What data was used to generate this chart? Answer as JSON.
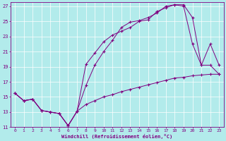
{
  "xlabel": "Windchill (Refroidissement éolien,°C)",
  "ylabel": "",
  "background_color": "#b2ebeb",
  "line_color": "#800080",
  "grid_color": "#ffffff",
  "xlim": [
    -0.5,
    23.5
  ],
  "ylim": [
    11,
    27.5
  ],
  "xticks": [
    0,
    1,
    2,
    3,
    4,
    5,
    6,
    7,
    8,
    9,
    10,
    11,
    12,
    13,
    14,
    15,
    16,
    17,
    18,
    19,
    20,
    21,
    22,
    23
  ],
  "yticks": [
    11,
    13,
    15,
    17,
    19,
    21,
    23,
    25,
    27
  ],
  "line1_x": [
    0,
    1,
    2,
    3,
    4,
    5,
    6,
    7,
    8,
    9,
    10,
    11,
    12,
    13,
    14,
    15,
    16,
    17,
    18,
    19,
    20,
    21,
    22,
    23
  ],
  "line1_y": [
    15.5,
    14.5,
    14.7,
    13.2,
    13.0,
    12.8,
    11.2,
    13.1,
    19.3,
    20.8,
    22.3,
    23.2,
    23.7,
    24.2,
    25.0,
    25.2,
    26.3,
    26.8,
    27.2,
    27.2,
    25.5,
    19.2,
    22.0,
    19.2
  ],
  "line2_x": [
    0,
    1,
    2,
    3,
    4,
    5,
    6,
    7,
    8,
    9,
    10,
    11,
    12,
    13,
    14,
    15,
    16,
    17,
    18,
    19,
    20,
    21,
    22,
    23
  ],
  "line2_y": [
    15.5,
    14.5,
    14.7,
    13.2,
    13.0,
    12.8,
    11.2,
    13.1,
    16.5,
    19.2,
    21.0,
    22.5,
    24.2,
    24.9,
    25.1,
    25.5,
    26.1,
    27.0,
    27.2,
    27.0,
    22.0,
    19.2,
    19.2,
    18.0
  ],
  "line3_x": [
    0,
    1,
    2,
    3,
    4,
    5,
    6,
    7,
    8,
    9,
    10,
    11,
    12,
    13,
    14,
    15,
    16,
    17,
    18,
    19,
    20,
    21,
    22,
    23
  ],
  "line3_y": [
    15.5,
    14.5,
    14.7,
    13.2,
    13.0,
    12.8,
    11.2,
    13.1,
    14.0,
    14.5,
    15.0,
    15.3,
    15.7,
    16.0,
    16.3,
    16.6,
    16.9,
    17.2,
    17.5,
    17.6,
    17.8,
    17.9,
    18.0,
    18.0
  ]
}
